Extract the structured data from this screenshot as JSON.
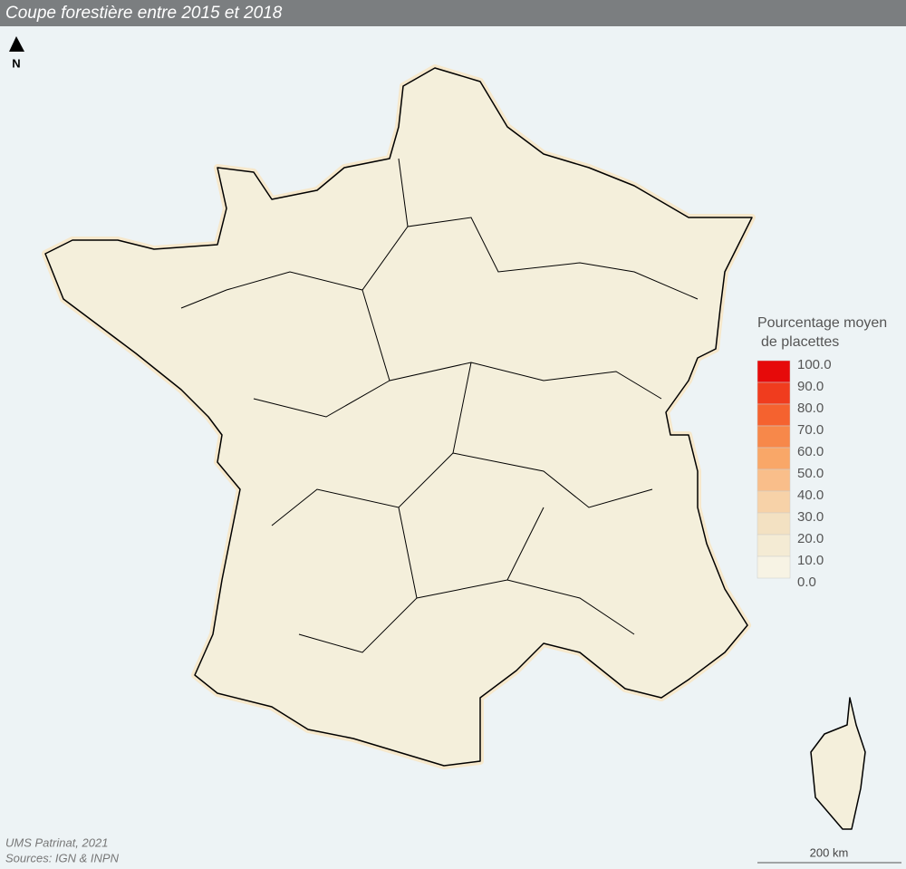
{
  "header": {
    "title": "Coupe forestière entre 2015 et 2018"
  },
  "north": "N",
  "legend": {
    "title_lines": [
      "Pourcentage moyen",
      "de placettes"
    ],
    "labels": [
      "100.0",
      "90.0",
      "80.0",
      "70.0",
      "60.0",
      "50.0",
      "40.0",
      "30.0",
      "20.0",
      "10.0",
      "0.0"
    ],
    "colors": [
      "#e60a0a",
      "#f03c1e",
      "#f5622f",
      "#f7884a",
      "#f9a768",
      "#f9be8a",
      "#f7d2a8",
      "#f3e1c2",
      "#f4ebd4",
      "#f7f3e4"
    ]
  },
  "credits": [
    "UMS Patrinat, 2021",
    "Sources: IGN & INPN"
  ],
  "scale": {
    "label": "200 km"
  }
}
